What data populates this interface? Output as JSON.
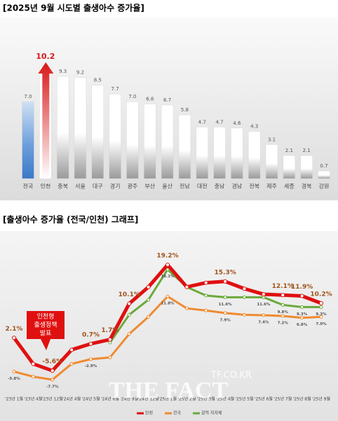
{
  "chart_data": [
    {
      "type": "bar",
      "title": "[2025년 9월 시도별 출생아수 증가율]",
      "categories": [
        "전국",
        "인천",
        "충북",
        "서울",
        "대구",
        "경기",
        "광주",
        "부산",
        "울산",
        "전남",
        "대전",
        "충남",
        "경남",
        "전북",
        "제주",
        "세종",
        "경북",
        "강원"
      ],
      "values": [
        7.0,
        10.2,
        9.3,
        9.2,
        8.5,
        7.7,
        7.0,
        6.8,
        6.7,
        5.8,
        4.7,
        4.7,
        4.6,
        4.3,
        3.1,
        2.1,
        2.1,
        0.7
      ],
      "value_labels": [
        "7.0",
        "10.2",
        "9.3",
        "9.2",
        "8.5",
        "7.7",
        "7.0",
        "6.8",
        "6.7",
        "5.8",
        "4.7",
        "4.7",
        "4.6",
        "4.3",
        "3.1",
        "2.1",
        "2.1",
        "0.7"
      ],
      "colors": [
        "#3a78c8",
        "#d81818",
        "#9a9a9a",
        "#9a9a9a",
        "#9a9a9a",
        "#9a9a9a",
        "#9a9a9a",
        "#9a9a9a",
        "#9a9a9a",
        "#9a9a9a",
        "#9a9a9a",
        "#9a9a9a",
        "#9a9a9a",
        "#9a9a9a",
        "#9a9a9a",
        "#9a9a9a",
        "#9a9a9a",
        "#9a9a9a"
      ]
    },
    {
      "type": "line",
      "title": "[출생아수 증가율 (전국/인천) 그래프]",
      "categories": [
        "'23년 1월",
        "'23년 4월",
        "'23년 12월",
        "'24년 4월",
        "'24년 5월",
        "'24년 6월",
        "'24년 9월",
        "'24년 12월",
        "'25년 1월",
        "'25년 2월",
        "'25년 3월",
        "'25년 4월",
        "'25년 5월",
        "'25년 6월",
        "'25년 7월",
        "'25년 8월",
        "'25년 9월"
      ],
      "series": [
        {
          "name": "인천",
          "color": "#e01010",
          "values": [
            2.1,
            -4.0,
            -5.6,
            -0.7,
            0.7,
            1.7,
            10.1,
            14.0,
            19.2,
            14.0,
            15.0,
            15.3,
            13.6,
            12.3,
            12.1,
            11.9,
            10.2
          ],
          "value_labels": [
            "2.1%",
            null,
            "-5.6%",
            null,
            "0.7%",
            "1.7%",
            "10.1%",
            null,
            "19.2%",
            null,
            null,
            "15.3%",
            null,
            null,
            "12.1%",
            "11.9%",
            "10.2%"
          ]
        },
        {
          "name": "전국",
          "color": "#f08a30",
          "values": [
            -5.8,
            -7.0,
            -7.7,
            -4.0,
            -2.9,
            -2.5,
            3.0,
            7.0,
            11.8,
            9.0,
            8.5,
            7.9,
            7.5,
            7.4,
            7.2,
            6.8,
            7.0
          ],
          "value_labels": [
            "-5.8%",
            null,
            "-7.7%",
            null,
            "-2.9%",
            null,
            null,
            null,
            "11.8%",
            null,
            null,
            "7.9%",
            null,
            "7.4%",
            "7.2%",
            "6.8%",
            "7.0%"
          ]
        },
        {
          "name": "광역 지자체",
          "color": "#6aaa3a",
          "values": [
            null,
            null,
            null,
            null,
            null,
            1.0,
            7.5,
            11.0,
            18.1,
            14.0,
            12.0,
            11.6,
            11.6,
            11.6,
            9.8,
            9.3,
            9.3
          ],
          "value_labels": [
            null,
            null,
            null,
            null,
            null,
            null,
            null,
            null,
            "18.1%",
            null,
            null,
            "11.6%",
            null,
            "11.6%",
            "9.8%",
            "9.3%",
            "9.3%"
          ]
        }
      ],
      "annotation": "인천형 출생정책 발표",
      "watermark": [
        "TF.CO.KR",
        "THE FACT"
      ]
    }
  ]
}
